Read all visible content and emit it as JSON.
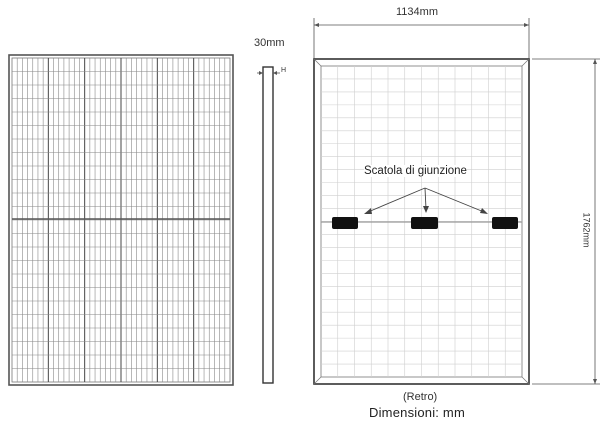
{
  "dimensions": {
    "width_label": "1134mm",
    "thickness_label": "30mm",
    "thickness_symbol": "H",
    "height_label": "1762mm"
  },
  "annotations": {
    "junction_box": "Scatola di giunzione"
  },
  "footer": {
    "view": "(Retro)",
    "units": "Dimensioni: mm"
  }
}
